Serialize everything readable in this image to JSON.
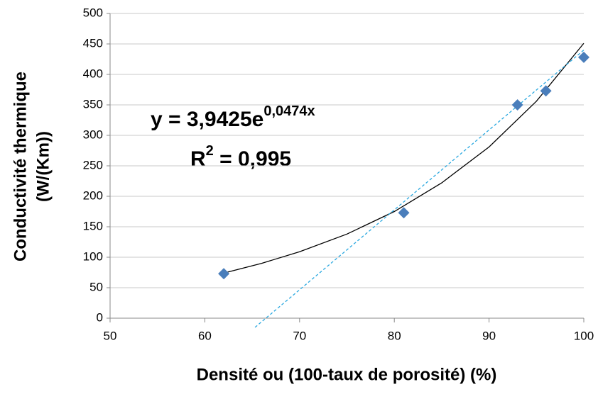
{
  "chart_data": {
    "type": "scatter",
    "x_label": "Densité ou (100-taux de porosité) (%)",
    "y_label_lines": [
      "Conductivité thermique",
      "(W/(Km))"
    ],
    "series": [
      {
        "color": "#4a7ebb",
        "x": [
          62,
          81,
          93,
          96,
          100
        ],
        "values": [
          73,
          173,
          350,
          373,
          428
        ]
      }
    ],
    "trendlines": [
      {
        "kind": "exponential",
        "color": "#000000",
        "x": [
          62,
          66,
          70,
          75,
          80,
          85,
          90,
          95,
          100
        ],
        "values": [
          74,
          90,
          109,
          138,
          175,
          222,
          281,
          356,
          451
        ]
      },
      {
        "kind": "linear",
        "color": "#2aa8e0",
        "x": [
          65.3,
          100
        ],
        "values": [
          -15,
          440
        ]
      }
    ],
    "equation": {
      "base": "y = 3,9425e",
      "exponent": "0,0474x"
    },
    "r_squared": {
      "base": "R",
      "exponent": "2",
      "rest": " = 0,995"
    },
    "xlim": [
      50,
      100
    ],
    "xticks": [
      50,
      60,
      70,
      80,
      90,
      100
    ],
    "ylim": [
      0,
      500
    ],
    "yticks": [
      0,
      50,
      100,
      150,
      200,
      250,
      300,
      350,
      400,
      450,
      500
    ],
    "grid": true
  }
}
